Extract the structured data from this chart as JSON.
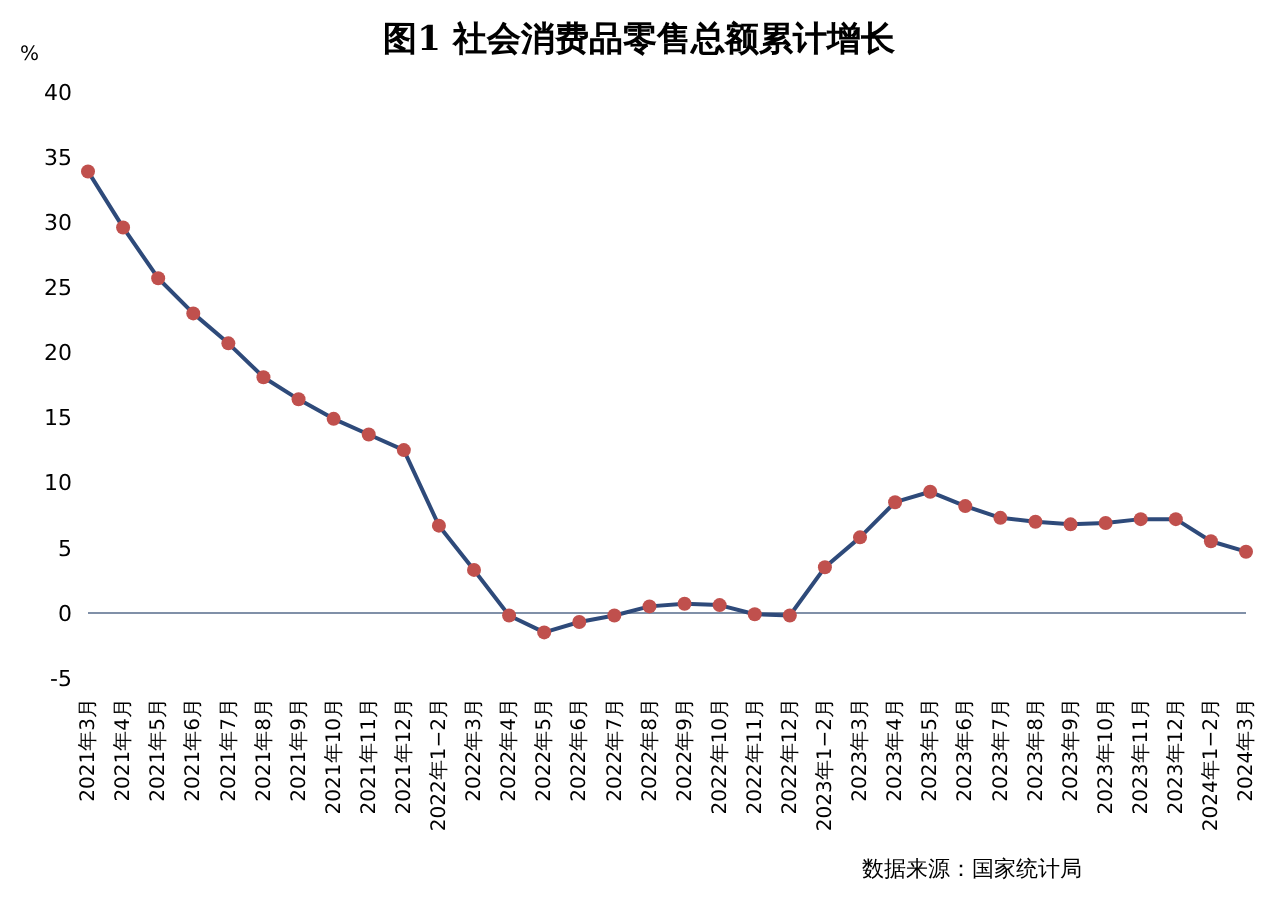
{
  "chart_data": {
    "type": "line",
    "title": "图1  社会消费品零售总额累计增长",
    "ylabel": "%",
    "categories": [
      "2021年3月",
      "2021年4月",
      "2021年5月",
      "2021年6月",
      "2021年7月",
      "2021年8月",
      "2021年9月",
      "2021年10月",
      "2021年11月",
      "2021年12月",
      "2022年1−2月",
      "2022年3月",
      "2022年4月",
      "2022年5月",
      "2022年6月",
      "2022年7月",
      "2022年8月",
      "2022年9月",
      "2022年10月",
      "2022年11月",
      "2022年12月",
      "2023年1−2月",
      "2023年3月",
      "2023年4月",
      "2023年5月",
      "2023年6月",
      "2023年7月",
      "2023年8月",
      "2023年9月",
      "2023年10月",
      "2023年11月",
      "2023年12月",
      "2024年1−2月",
      "2024年3月"
    ],
    "series": [
      {
        "color": "#2e4a7a",
        "colors": [
          "#c0504d",
          "#c0504d",
          "#c0504d",
          "#c0504d",
          "#c0504d",
          "#c0504d",
          "#c0504d",
          "#c0504d",
          "#c0504d",
          "#c0504d",
          "#c0504d",
          "#c0504d",
          "#c0504d",
          "#c0504d",
          "#c0504d",
          "#c0504d",
          "#c0504d",
          "#c0504d",
          "#c0504d",
          "#c0504d",
          "#c0504d",
          "#c0504d",
          "#c0504d",
          "#c0504d",
          "#c0504d",
          "#c0504d",
          "#c0504d",
          "#c0504d",
          "#c0504d",
          "#c0504d",
          "#c0504d",
          "#c0504d",
          "#c0504d",
          "#c0504d"
        ],
        "values": [
          33.9,
          29.6,
          25.7,
          23.0,
          20.7,
          18.1,
          16.4,
          14.9,
          13.7,
          12.5,
          6.7,
          3.3,
          -0.2,
          -1.5,
          -0.7,
          -0.2,
          0.5,
          0.7,
          0.6,
          -0.1,
          -0.2,
          3.5,
          5.8,
          8.5,
          9.3,
          8.2,
          7.3,
          7.0,
          6.8,
          6.9,
          7.2,
          7.2,
          5.5,
          4.7
        ]
      }
    ],
    "ylim": [
      -5,
      40
    ],
    "yticks": [
      -5,
      0,
      5,
      10,
      15,
      20,
      25,
      30,
      35,
      40
    ],
    "marker": "circle",
    "line_style": "solid",
    "ref_lines": [
      {
        "axis": "y",
        "value": 0,
        "color": "#8090a8"
      }
    ],
    "annotations": [
      "数据来源：国家统计局"
    ]
  }
}
